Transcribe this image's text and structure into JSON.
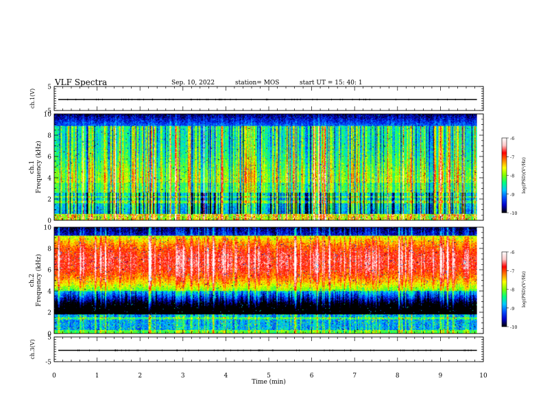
{
  "header": {
    "title": "VLF Spectra",
    "date": "Sep. 10, 2022",
    "station_label": "station= MOS",
    "start_label": "start  UT =   15: 40: 1"
  },
  "chart_data": [
    {
      "type": "line",
      "panel": "ch1-waveform",
      "ylabel": "ch.1(V)",
      "ylim": [
        -5,
        5
      ],
      "y_ticks": [
        "5",
        "-5"
      ],
      "x_range": [
        0,
        10
      ],
      "series_level": 0
    },
    {
      "type": "heatmap",
      "panel": "ch1-spectrogram",
      "ylabel_line1": "ch.1",
      "ylabel_line2": "Frequency (kHz)",
      "ylim": [
        0,
        10
      ],
      "y_ticks": [
        "0",
        "2",
        "4",
        "6",
        "8",
        "10"
      ],
      "x_range": [
        0,
        9.85
      ],
      "background_level": -8.6,
      "band_high_khz": 8.9,
      "colorbar": {
        "label": "log(PSD)(V²/Hz)",
        "ticks": [
          "-6",
          "-7",
          "-8",
          "-9",
          "-10"
        ],
        "range": [
          -10,
          -6
        ]
      }
    },
    {
      "type": "heatmap",
      "panel": "ch2-spectrogram",
      "ylabel_line1": "ch.2",
      "ylabel_line2": "Frequency (kHz)",
      "ylim": [
        0,
        10
      ],
      "y_ticks": [
        "0",
        "2",
        "4",
        "6",
        "8",
        "10"
      ],
      "x_range": [
        0,
        9.85
      ],
      "band_center_khz": 6.8,
      "band_peak_level": -6.8,
      "colorbar": {
        "label": "log(PSD)(V²/Hz)",
        "ticks": [
          "-6",
          "-7",
          "-8",
          "-9",
          "-10"
        ],
        "range": [
          -10,
          -6
        ]
      }
    },
    {
      "type": "line",
      "panel": "ch3-waveform",
      "ylabel": "ch.3(V)",
      "ylim": [
        -5,
        5
      ],
      "y_ticks": [
        "5",
        "-5"
      ],
      "x_range": [
        0,
        10
      ],
      "series_level": 0
    }
  ],
  "x_axis": {
    "label": "Time (min)",
    "ticks": [
      "0",
      "1",
      "2",
      "3",
      "4",
      "5",
      "6",
      "7",
      "8",
      "9",
      "10"
    ],
    "range": [
      0,
      10
    ]
  },
  "colors": {
    "colormap": [
      "#000000",
      "#0000c8",
      "#0050ff",
      "#00c8ff",
      "#00ff80",
      "#80ff00",
      "#ffff00",
      "#ff8000",
      "#ff0000",
      "#ffc8c8",
      "#ffffff"
    ]
  }
}
